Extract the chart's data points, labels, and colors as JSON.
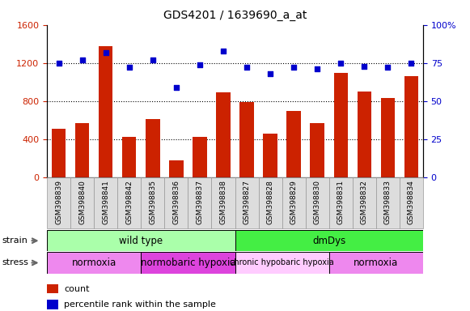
{
  "title": "GDS4201 / 1639690_a_at",
  "samples": [
    "GSM398839",
    "GSM398840",
    "GSM398841",
    "GSM398842",
    "GSM398835",
    "GSM398836",
    "GSM398837",
    "GSM398838",
    "GSM398827",
    "GSM398828",
    "GSM398829",
    "GSM398830",
    "GSM398831",
    "GSM398832",
    "GSM398833",
    "GSM398834"
  ],
  "counts": [
    510,
    570,
    1380,
    420,
    610,
    175,
    420,
    890,
    790,
    460,
    700,
    570,
    1100,
    900,
    830,
    1060
  ],
  "percentile_ranks": [
    75,
    77,
    82,
    72,
    77,
    59,
    74,
    83,
    72,
    68,
    72,
    71,
    75,
    73,
    72,
    75
  ],
  "bar_color": "#cc2200",
  "dot_color": "#0000cc",
  "left_ylim": [
    0,
    1600
  ],
  "right_ylim": [
    0,
    100
  ],
  "left_yticks": [
    0,
    400,
    800,
    1200,
    1600
  ],
  "right_yticks": [
    0,
    25,
    50,
    75,
    100
  ],
  "right_yticklabels": [
    "0",
    "25",
    "50",
    "75",
    "100%"
  ],
  "grid_values": [
    400,
    800,
    1200
  ],
  "strain_groups": [
    {
      "label": "wild type",
      "start": 0,
      "end": 8,
      "color": "#aaffaa"
    },
    {
      "label": "dmDys",
      "start": 8,
      "end": 16,
      "color": "#44ee44"
    }
  ],
  "stress_groups": [
    {
      "label": "normoxia",
      "start": 0,
      "end": 4,
      "color": "#ee88ee"
    },
    {
      "label": "normobaric hypoxia",
      "start": 4,
      "end": 8,
      "color": "#dd44dd"
    },
    {
      "label": "chronic hypobaric hypoxia",
      "start": 8,
      "end": 12,
      "color": "#ffccff"
    },
    {
      "label": "normoxia",
      "start": 12,
      "end": 16,
      "color": "#ee88ee"
    }
  ],
  "tick_area_color": "#dddddd",
  "fig_bg": "#ffffff"
}
